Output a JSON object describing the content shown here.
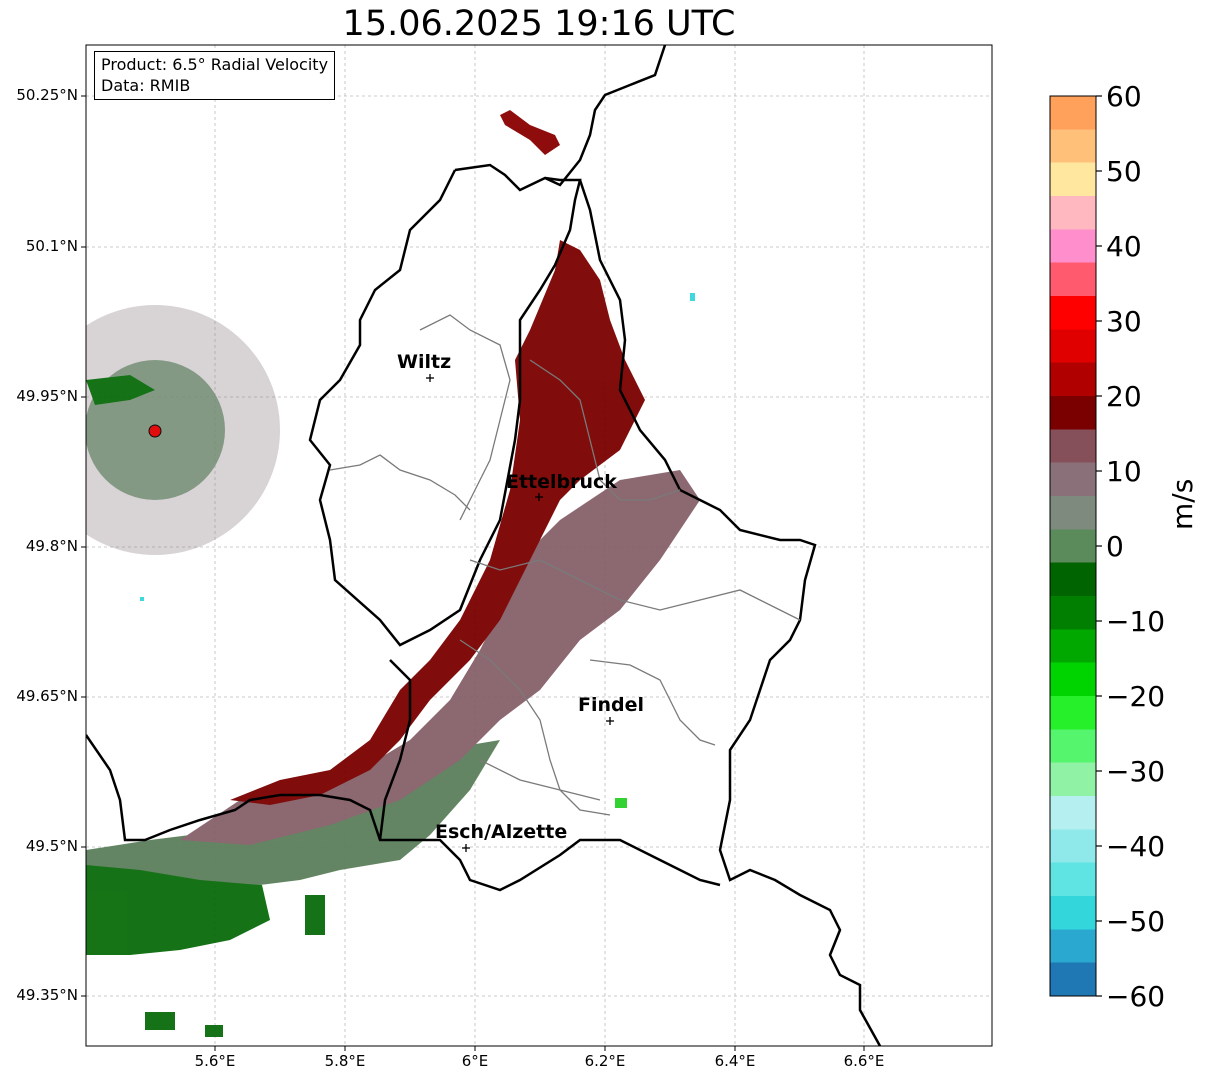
{
  "title": "15.06.2025 19:16 UTC",
  "info_box": {
    "line1": "Product: 6.5° Radial Velocity",
    "line2": "Data: RMIB"
  },
  "y_labels": [
    "50.25°N",
    "50.1°N",
    "49.95°N",
    "49.8°N",
    "49.65°N",
    "49.5°N",
    "49.35°N"
  ],
  "x_labels": [
    "5.6°E",
    "5.8°E",
    "6°E",
    "6.2°E",
    "6.4°E",
    "6.6°E"
  ],
  "cities": [
    {
      "name": "Wiltz",
      "lon": 5.93,
      "lat": 49.965
    },
    {
      "name": "Ettelbruck",
      "lon": 6.1,
      "lat": 49.847
    },
    {
      "name": "Findel",
      "lon": 6.21,
      "lat": 49.627
    },
    {
      "name": "Esch/Alzette",
      "lon": 5.99,
      "lat": 49.5
    }
  ],
  "colorbar": {
    "unit": "m/s",
    "ticks": [
      "60",
      "50",
      "40",
      "30",
      "20",
      "10",
      "0",
      "−10",
      "−20",
      "−30",
      "−40",
      "−50",
      "−60"
    ],
    "range": [
      -60,
      60
    ],
    "colors": [
      "#1f78b4",
      "#2aa8d0",
      "#33d7db",
      "#5fe3e3",
      "#8fe9ea",
      "#b6eff0",
      "#8ff2a4",
      "#55f56e",
      "#26f02a",
      "#00d400",
      "#00a800",
      "#007f00",
      "#006400",
      "#5b8a5b",
      "#7d8a7d",
      "#8a7078",
      "#86505a",
      "#7a0000",
      "#b00000",
      "#e00000",
      "#ff0000",
      "#ff5a6e",
      "#ff8fcc",
      "#ffb7c0",
      "#ffe7a0",
      "#ffc07a",
      "#ffa15a"
    ]
  }
}
